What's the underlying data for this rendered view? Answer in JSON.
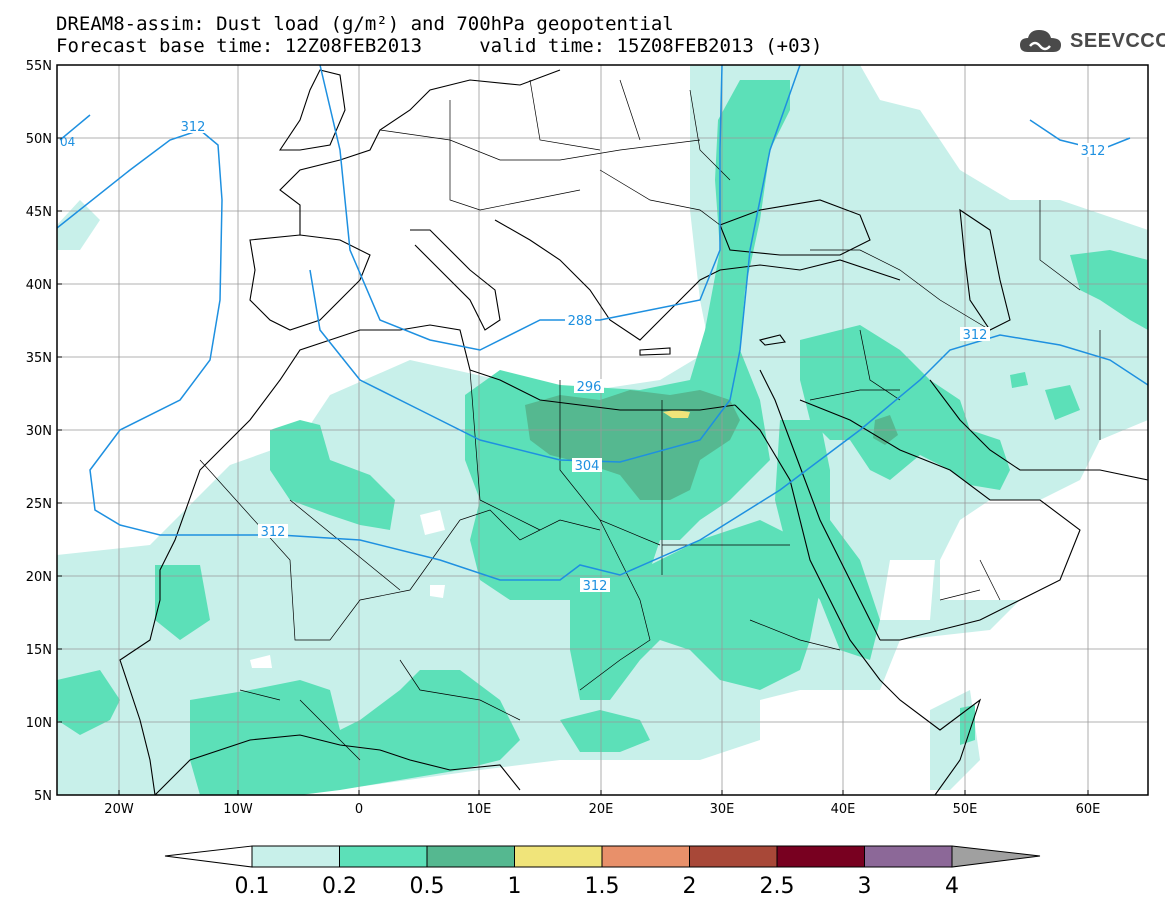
{
  "header": {
    "line1": "DREAM8-assim: Dust load (g/m²) and 700hPa geopotential",
    "line2": "Forecast base time: 12Z08FEB2013     valid time: 15Z08FEB2013 (+03)"
  },
  "logo": {
    "text": "SEEVCCC",
    "icon": "cloud-icon"
  },
  "map": {
    "lat_labels": [
      "55N",
      "50N",
      "45N",
      "40N",
      "35N",
      "30N",
      "25N",
      "20N",
      "15N",
      "10N",
      "5N"
    ],
    "lon_labels": [
      "20W",
      "10W",
      "0",
      "10E",
      "20E",
      "30E",
      "40E",
      "50E",
      "60E"
    ],
    "contour_labels": [
      "312",
      "288",
      "296",
      "304",
      "312",
      "312",
      "312",
      "04"
    ]
  },
  "colorbar": {
    "labels": [
      "0.1",
      "0.2",
      "0.5",
      "1",
      "1.5",
      "2",
      "2.5",
      "3",
      "4"
    ],
    "colors": [
      "#c8f0ea",
      "#5ce0b8",
      "#55b890",
      "#f0e47a",
      "#e8906a",
      "#a84838",
      "#780020",
      "#8c6898"
    ],
    "left_arrow_color": "#ffffff",
    "right_arrow_color": "#a0a0a0"
  },
  "colors": {
    "dust_01": "#c8f0ea",
    "dust_02": "#5ce0b8",
    "dust_05": "#55b890",
    "dust_1": "#f0e47a",
    "contour": "#1e90e0"
  }
}
